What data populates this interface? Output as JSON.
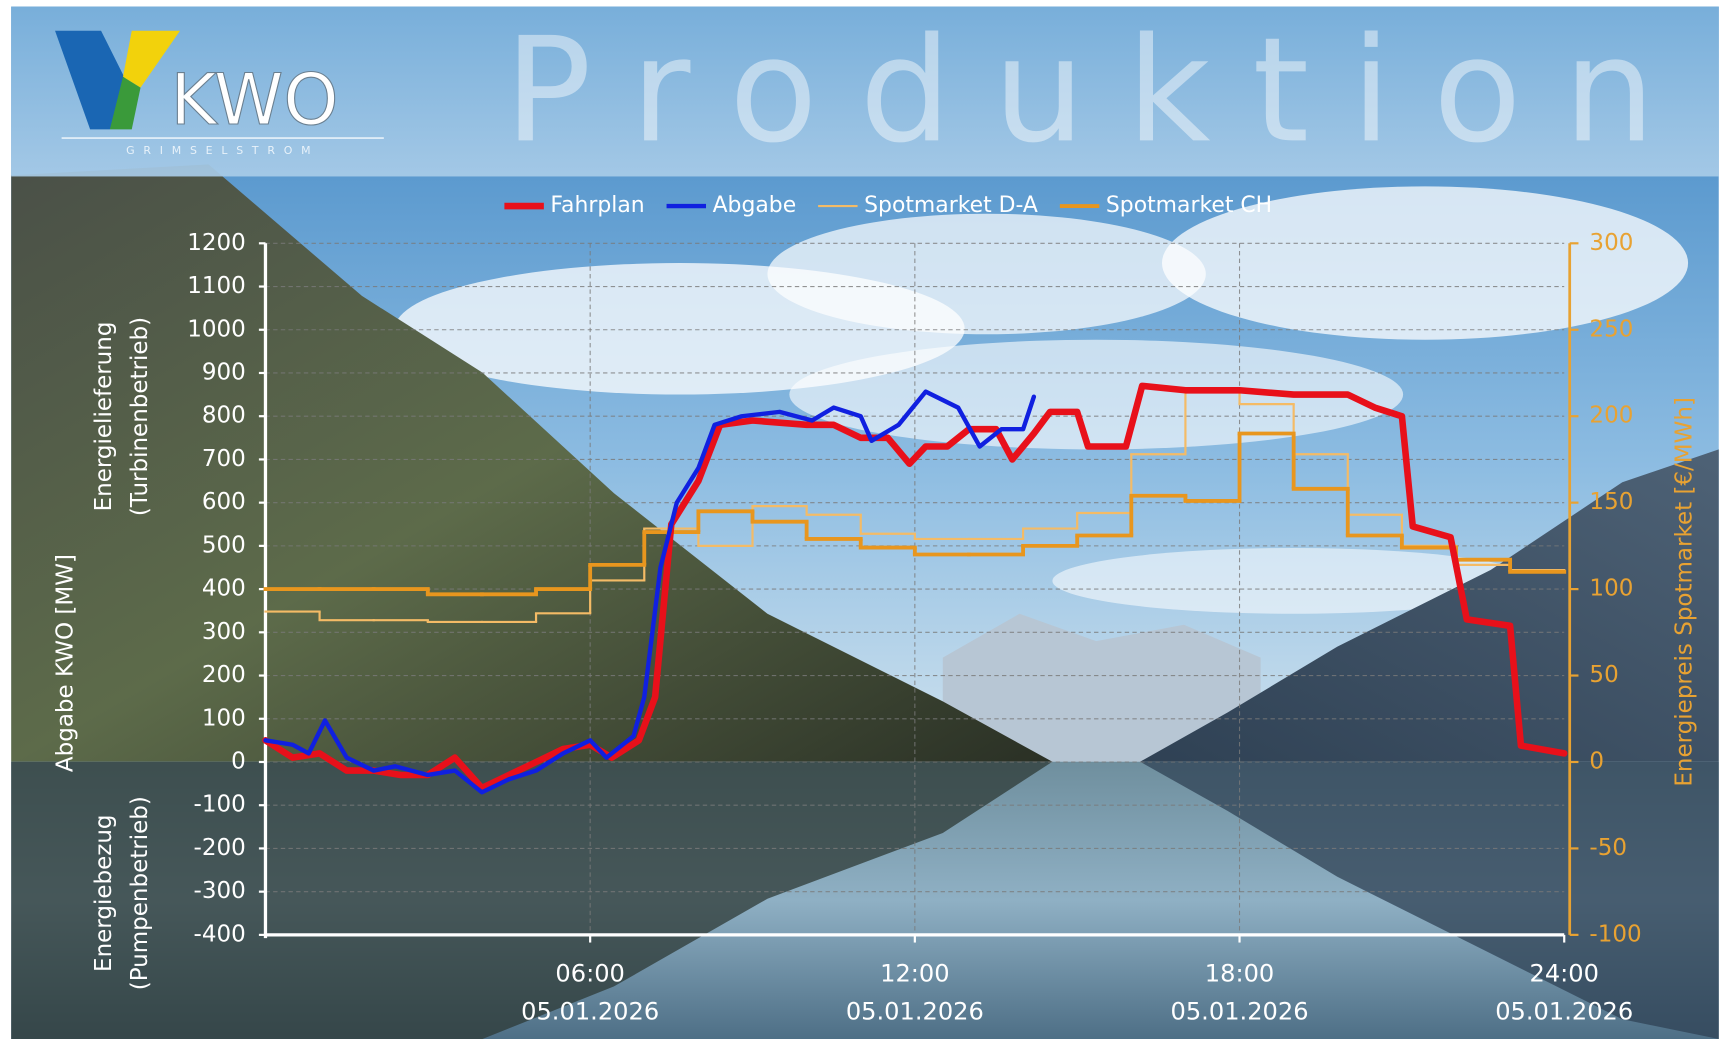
{
  "header": {
    "logo": "KWO",
    "logo_subtitle": "GRIMSELSTROM",
    "title": "Produktion"
  },
  "chart_data": {
    "type": "line",
    "y_label": "Abgabe KWO [MW]",
    "y_label_upper": [
      "Energielieferung",
      "(Turbinenbetrieb)"
    ],
    "y_label_lower": [
      "Energiebezug",
      "(Pumpenbetrieb)"
    ],
    "y2_label": "Energiepreis Spotmarket [€/MWh]",
    "xlim": [
      0,
      24
    ],
    "xticks": [
      {
        "value": 6,
        "label": "06:00"
      },
      {
        "value": 12,
        "label": "12:00"
      },
      {
        "value": 18,
        "label": "18:00"
      },
      {
        "value": 24,
        "label": "24:00"
      }
    ],
    "xtick_dates": [
      "05.01.2026",
      "05.01.2026",
      "05.01.2026",
      "05.01.2026"
    ],
    "ylim": [
      -400,
      1200
    ],
    "yticks": [
      -400,
      -300,
      -200,
      -100,
      0,
      100,
      200,
      300,
      400,
      500,
      600,
      700,
      800,
      900,
      1000,
      1100,
      1200
    ],
    "y2lim": [
      -100,
      300
    ],
    "y2ticks": [
      -100,
      -50,
      0,
      50,
      100,
      150,
      200,
      250,
      300
    ],
    "y2_color": "#e8a232",
    "grid": true,
    "series": [
      {
        "name": "Spotmarket D-A",
        "color": "#f4bb66",
        "line_width": 2,
        "axis": "y2",
        "step": true,
        "x": [
          0,
          1,
          2,
          3,
          4,
          5,
          6,
          7,
          8,
          9,
          10,
          11,
          12,
          13,
          14,
          15,
          16,
          17,
          18,
          19,
          20,
          21,
          22,
          23
        ],
        "values": [
          87,
          82,
          82,
          81,
          81,
          86,
          105,
          135,
          125,
          148,
          143,
          132,
          129,
          129,
          135,
          144,
          178,
          216,
          207,
          178,
          143,
          125,
          114,
          111
        ]
      },
      {
        "name": "Spotmarket CH",
        "color": "#e8961e",
        "line_width": 3.5,
        "axis": "y2",
        "step": true,
        "x": [
          0,
          1,
          2,
          3,
          4,
          5,
          6,
          7,
          8,
          9,
          10,
          11,
          12,
          13,
          14,
          15,
          16,
          17,
          18,
          19,
          20,
          21,
          22,
          23
        ],
        "values": [
          100,
          100,
          100,
          97,
          97,
          100,
          114,
          133,
          145,
          139,
          129,
          124,
          120,
          120,
          125,
          131,
          154,
          151,
          190,
          158,
          131,
          124,
          117,
          110
        ]
      },
      {
        "name": "Fahrplan",
        "color": "#e8101a",
        "line_width": 6,
        "x": [
          0,
          0.5,
          1,
          1.5,
          2,
          2.5,
          3,
          3.5,
          4,
          4.5,
          5,
          5.5,
          6,
          6.4,
          6.9,
          7.2,
          7.5,
          8,
          8.4,
          9,
          10,
          10.5,
          11,
          11.5,
          11.9,
          12.2,
          12.6,
          13,
          13.5,
          13.8,
          14.2,
          14.5,
          15,
          15.2,
          15.9,
          16.2,
          17,
          18,
          19,
          20,
          20.5,
          21,
          21.2,
          21.9,
          22.2,
          23,
          23.2,
          24
        ],
        "values": [
          50,
          10,
          20,
          -20,
          -20,
          -30,
          -30,
          10,
          -60,
          -30,
          0,
          30,
          40,
          10,
          50,
          150,
          550,
          650,
          780,
          790,
          780,
          780,
          750,
          750,
          690,
          730,
          730,
          770,
          770,
          700,
          760,
          810,
          810,
          730,
          730,
          870,
          860,
          860,
          850,
          850,
          820,
          800,
          545,
          520,
          330,
          315,
          38,
          20
        ]
      },
      {
        "name": "Abgabe",
        "color": "#1020e0",
        "line_width": 4,
        "x": [
          0,
          0.5,
          0.8,
          1.1,
          1.5,
          2,
          2.4,
          3,
          3.5,
          4,
          4.5,
          5,
          5.5,
          6,
          6.3,
          6.8,
          7,
          7.3,
          7.6,
          8,
          8.3,
          8.8,
          9.5,
          10.1,
          10.5,
          11,
          11.2,
          11.7,
          12.2,
          12.8,
          13.2,
          13.6,
          14,
          14.2
        ],
        "values": [
          50,
          40,
          20,
          96,
          10,
          -20,
          -10,
          -30,
          -20,
          -70,
          -40,
          -20,
          20,
          50,
          10,
          60,
          150,
          450,
          600,
          680,
          780,
          800,
          810,
          790,
          820,
          800,
          743,
          780,
          857,
          820,
          730,
          770,
          770,
          845
        ]
      }
    ],
    "legend_order": [
      2,
      3,
      0,
      1
    ]
  }
}
